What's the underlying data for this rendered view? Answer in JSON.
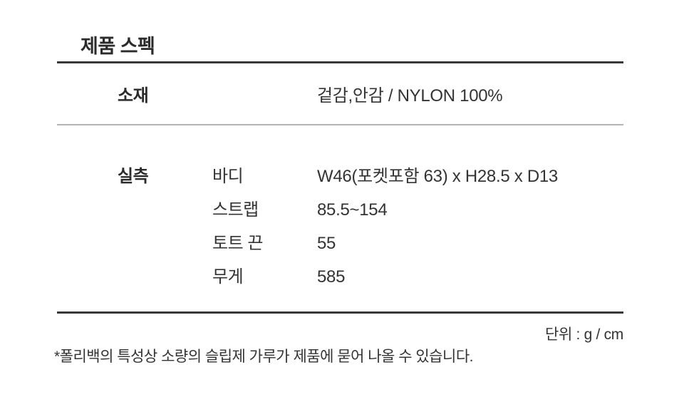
{
  "page": {
    "title": "제품 스펙",
    "unit_note": "단위 : g / cm",
    "footnote": "*폴리백의 특성상 소량의 슬립제 가루가 제품에 묻어 나올 수 있습니다."
  },
  "spec_table": {
    "material": {
      "label": "소재",
      "value": "겉감,안감 / NYLON 100%"
    },
    "measurements": {
      "label": "실측",
      "rows": [
        {
          "name": "바디",
          "value": "W46(포켓포함 63) x H28.5 x D13"
        },
        {
          "name": "스트랩",
          "value": "85.5~154"
        },
        {
          "name": "토트 끈",
          "value": "55"
        },
        {
          "name": "무게",
          "value": "585"
        }
      ]
    }
  },
  "colors": {
    "text": "#333333",
    "heading": "#2b2b2b",
    "divider_dark": "#383838",
    "divider_light": "#b3b3b3",
    "background": "#ffffff"
  }
}
